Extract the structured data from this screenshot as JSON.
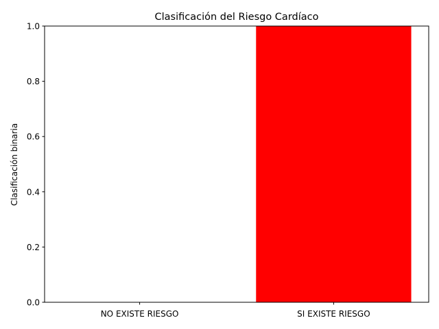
{
  "chart_data": {
    "type": "bar",
    "title": "Clasificación del Riesgo Cardíaco",
    "xlabel": "",
    "ylabel": "Clasificación binaria",
    "categories": [
      "NO EXISTE RIESGO",
      "SI EXISTE RIESGO"
    ],
    "values": [
      0,
      1
    ],
    "bar_colors": [
      "#ff0000",
      "#ff0000"
    ],
    "ylim": [
      0,
      1.0
    ],
    "yticks": [
      "0.0",
      "0.2",
      "0.4",
      "0.6",
      "0.8",
      "1.0"
    ],
    "grid": false,
    "legend": "none"
  }
}
